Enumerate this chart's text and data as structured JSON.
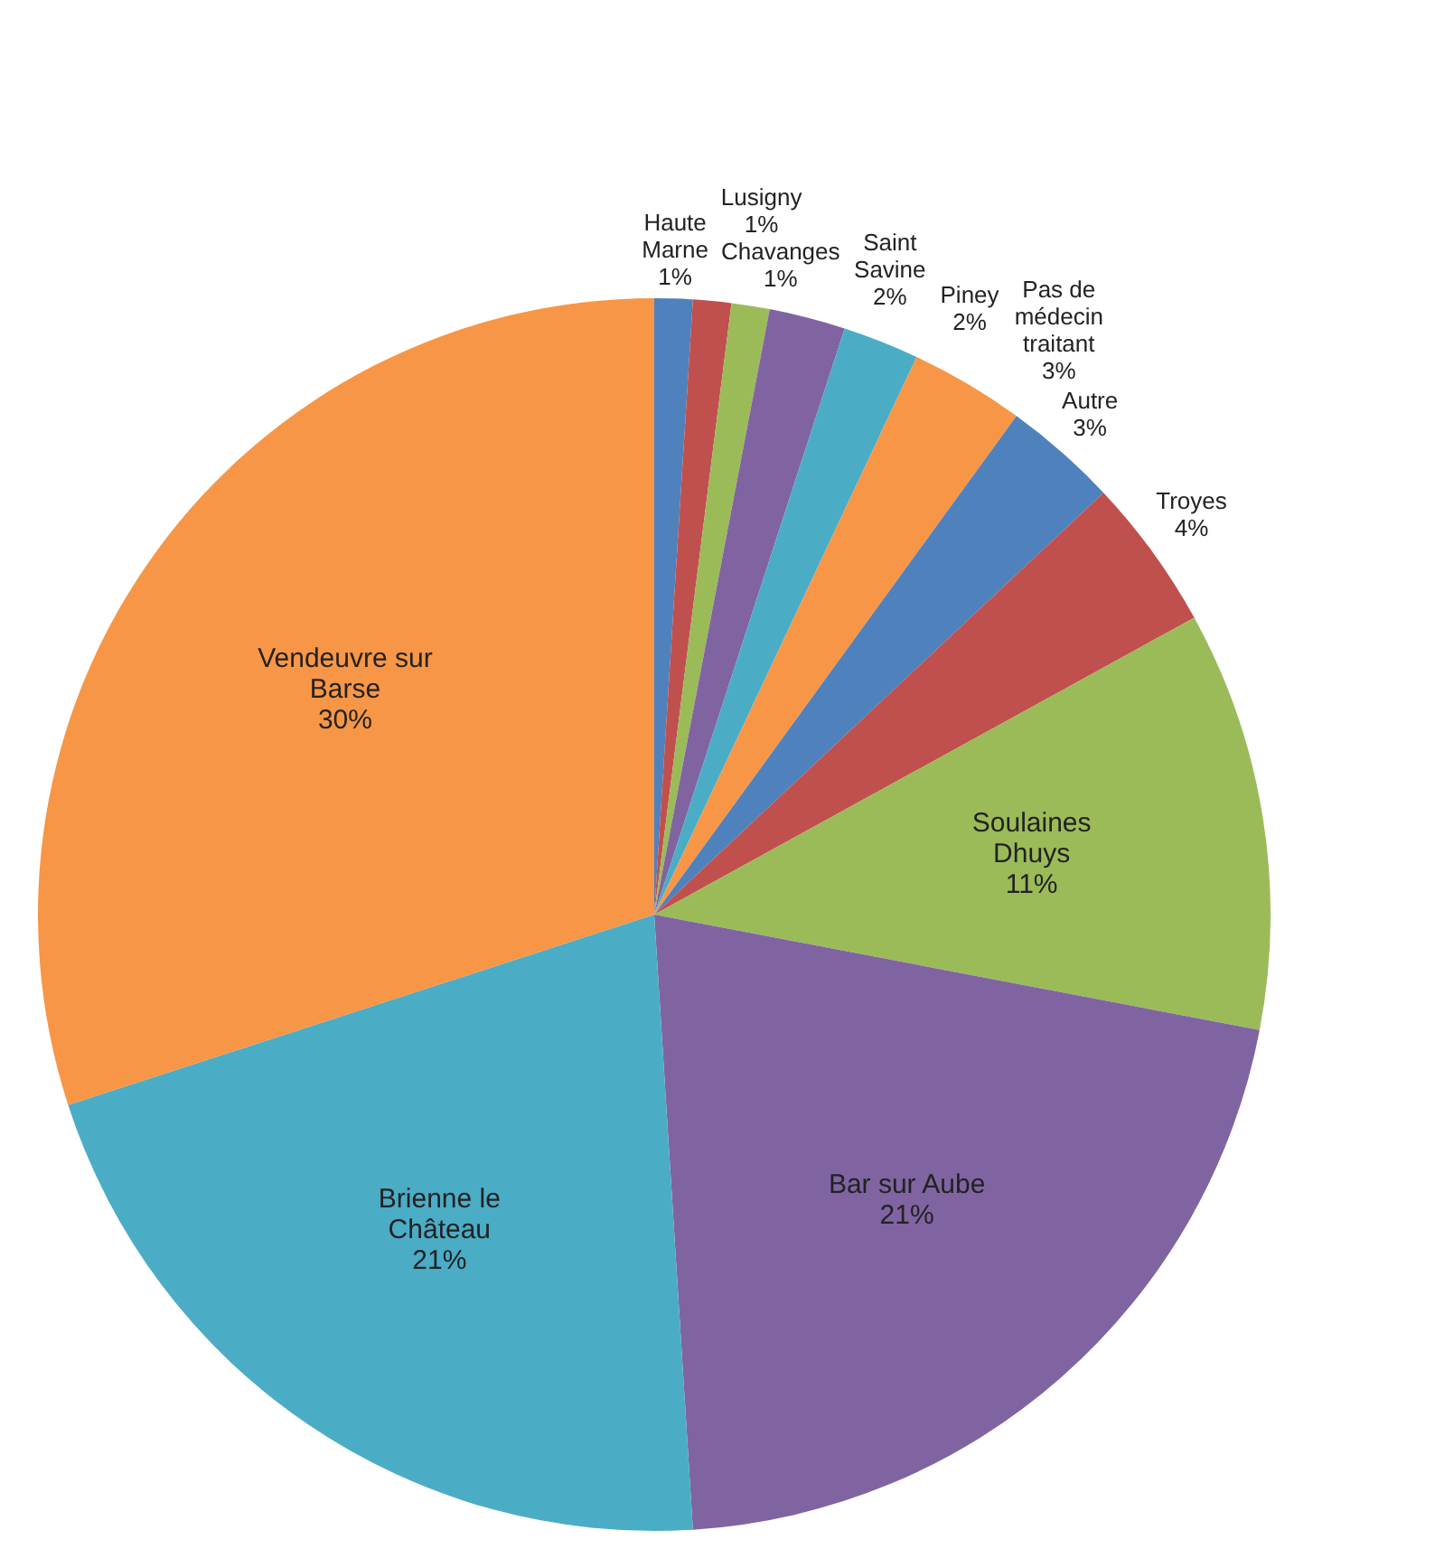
{
  "chart_data": {
    "type": "pie",
    "categories": [
      "Haute Marne",
      "Chavanges",
      "Lusigny",
      "Saint Savine",
      "Piney",
      "Pas de médecin traitant",
      "Autre",
      "Troyes",
      "Soulaines Dhuys",
      "Bar sur Aube",
      "Brienne le Château",
      "Vendeuvre sur Barse"
    ],
    "values": [
      1,
      1,
      1,
      2,
      2,
      3,
      3,
      4,
      11,
      21,
      21,
      30
    ],
    "value_labels": [
      "1%",
      "1%",
      "1%",
      "2%",
      "2%",
      "3%",
      "3%",
      "4%",
      "11%",
      "21%",
      "21%",
      "30%"
    ],
    "colors": [
      "#4f81bd",
      "#c0504d",
      "#9bbb59",
      "#8064a2",
      "#4bacc6",
      "#f79646",
      "#4f81bd",
      "#c0504d",
      "#9bbb59",
      "#8064a2",
      "#4bacc6",
      "#f79646"
    ],
    "legend": false
  }
}
